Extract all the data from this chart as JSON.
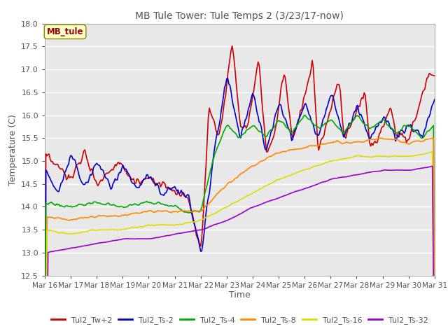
{
  "title": "MB Tule Tower: Tule Temps 2 (3/23/17-now)",
  "xlabel": "Time",
  "ylabel": "Temperature (C)",
  "ylim": [
    12.5,
    18.0
  ],
  "yticks": [
    12.5,
    13.0,
    13.5,
    14.0,
    14.5,
    15.0,
    15.5,
    16.0,
    16.5,
    17.0,
    17.5,
    18.0
  ],
  "xtick_labels": [
    "Mar 16",
    "Mar 17",
    "Mar 18",
    "Mar 19",
    "Mar 20",
    "Mar 21",
    "Mar 22",
    "Mar 23",
    "Mar 24",
    "Mar 25",
    "Mar 26",
    "Mar 27",
    "Mar 28",
    "Mar 29",
    "Mar 30",
    "Mar 31"
  ],
  "legend_label": "MB_tule",
  "series_colors": [
    "#cc0000",
    "#0000cc",
    "#00aa00",
    "#ff8800",
    "#dddd00",
    "#9900cc"
  ],
  "series_names": [
    "Tul2_Tw+2",
    "Tul2_Ts-2",
    "Tul2_Ts-4",
    "Tul2_Ts-8",
    "Tul2_Ts-16",
    "Tul2_Ts-32"
  ],
  "background_color": "#ffffff",
  "plot_bg_color": "#e8e8e8",
  "grid_color": "#ffffff"
}
